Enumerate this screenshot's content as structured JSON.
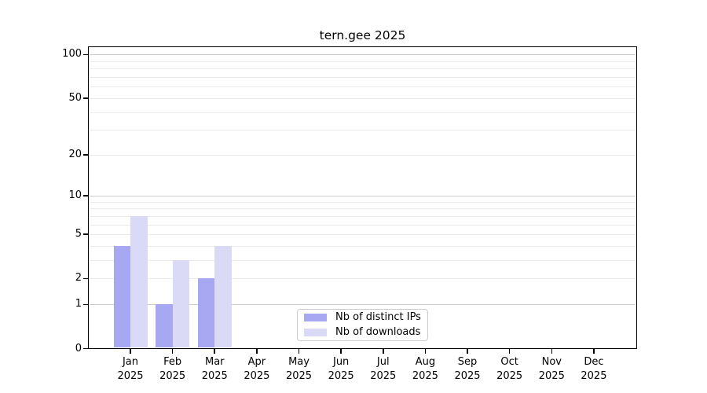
{
  "chart_data": {
    "type": "bar",
    "title": "tern.gee 2025",
    "x": {
      "categories": [
        "Jan",
        "Feb",
        "Mar",
        "Apr",
        "May",
        "Jun",
        "Jul",
        "Aug",
        "Sep",
        "Oct",
        "Nov",
        "Dec"
      ],
      "year": "2025"
    },
    "y_axis": {
      "scale": "log10(value+1)",
      "ticks": [
        0,
        1,
        2,
        5,
        10,
        20,
        50,
        100
      ],
      "major_gridlines": [
        1,
        10,
        100
      ],
      "minor_gridlines": [
        2,
        3,
        4,
        5,
        6,
        7,
        8,
        9,
        20,
        30,
        40,
        50,
        60,
        70,
        80,
        90
      ],
      "range": [
        0,
        115
      ],
      "grid": true
    },
    "series": [
      {
        "name": "Nb of distinct IPs",
        "color": "#a8a8f2",
        "values": [
          4,
          1,
          2,
          0,
          0,
          0,
          0,
          0,
          0,
          0,
          0,
          0
        ]
      },
      {
        "name": "Nb of downloads",
        "color": "#dadaf6",
        "values": [
          7,
          3,
          4,
          0,
          0,
          0,
          0,
          0,
          0,
          0,
          0,
          0
        ]
      }
    ],
    "legend": {
      "position": "lower center"
    }
  },
  "colors": {
    "background": "#ffffff",
    "axis": "#000000",
    "text": "#000000",
    "major_grid": "#cccccc",
    "minor_grid": "#ebebeb",
    "legend_border": "#cccccc"
  }
}
